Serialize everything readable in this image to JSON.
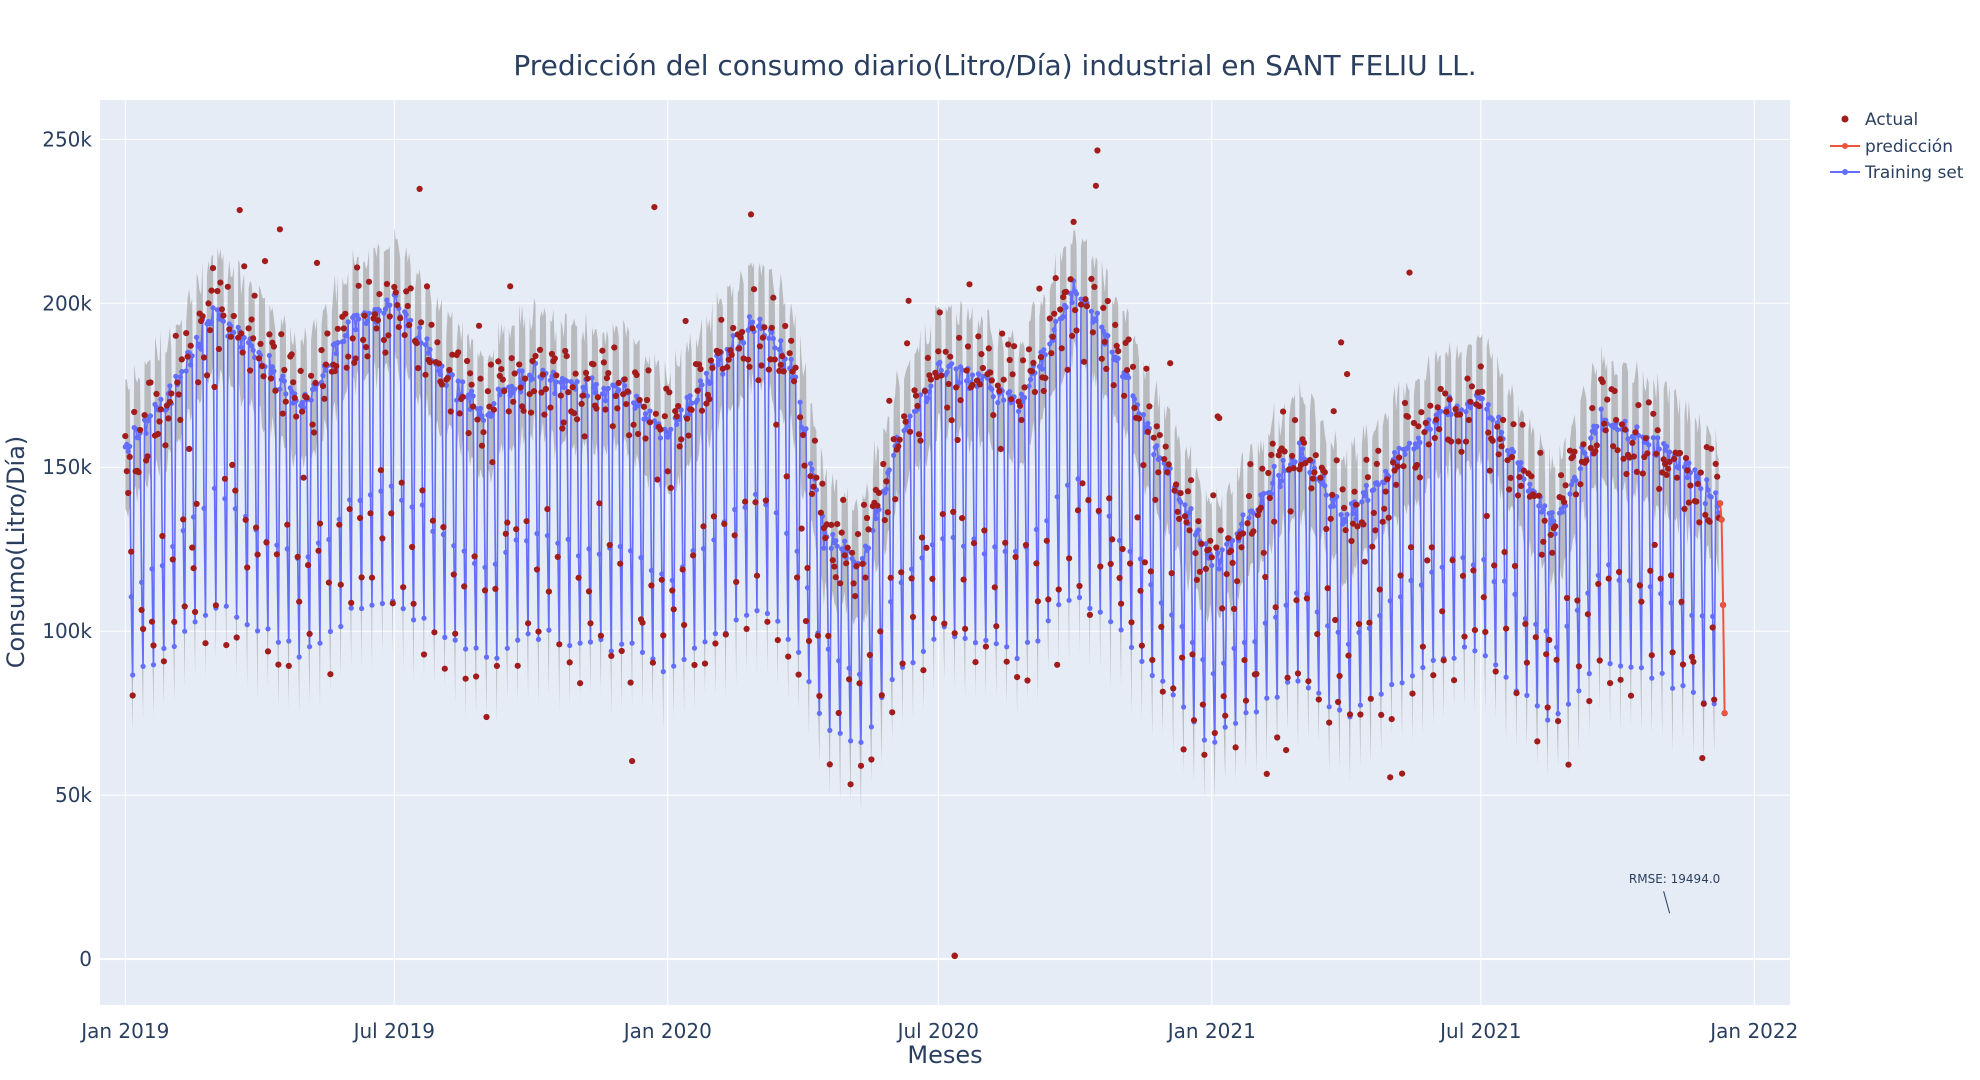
{
  "chart_data": {
    "type": "line",
    "title": "Predicción del consumo diario(Litro/Día) industrial en SANT FELIU LL.",
    "xlabel": "Meses",
    "ylabel": "Consumo(Litro/Día)",
    "x_range": [
      "2018-12-15",
      "2022-01-25"
    ],
    "ylim": [
      -14000,
      262000
    ],
    "x_ticks": [
      {
        "date": "2019-01-01",
        "label": "Jan 2019"
      },
      {
        "date": "2019-07-01",
        "label": "Jul 2019"
      },
      {
        "date": "2020-01-01",
        "label": "Jan 2020"
      },
      {
        "date": "2020-07-01",
        "label": "Jul 2020"
      },
      {
        "date": "2021-01-01",
        "label": "Jan 2021"
      },
      {
        "date": "2021-07-01",
        "label": "Jul 2021"
      },
      {
        "date": "2022-01-01",
        "label": "Jan 2022"
      }
    ],
    "y_ticks": [
      {
        "value": 0,
        "label": "0"
      },
      {
        "value": 50000,
        "label": "50k"
      },
      {
        "value": 100000,
        "label": "100k"
      },
      {
        "value": 150000,
        "label": "150k"
      },
      {
        "value": 200000,
        "label": "200k"
      },
      {
        "value": 250000,
        "label": "250k"
      }
    ],
    "grid": true,
    "legend_position": "top-right",
    "series": [
      {
        "name": "Actual",
        "mode": "markers",
        "color": "#a31c1c"
      },
      {
        "name": "predicción",
        "mode": "lines+markers",
        "color": "#ef553b",
        "points": [
          {
            "date": "2021-12-09",
            "value": 139000
          },
          {
            "date": "2021-12-10",
            "value": 134000
          },
          {
            "date": "2021-12-11",
            "value": 108000
          },
          {
            "date": "2021-12-12",
            "value": 75000
          }
        ]
      },
      {
        "name": "Training set",
        "mode": "lines+markers",
        "color": "#636efa",
        "band_color": "#a9a9a9"
      }
    ],
    "training_profile": {
      "start": "2019-01-01",
      "end": "2021-12-08",
      "weekend_drop_sat": 0.28,
      "weekend_drop_sun": 0.45,
      "band_halfwidth": 15000,
      "weekday_level_knots": [
        {
          "date": "2019-01-01",
          "value": 155000
        },
        {
          "date": "2019-02-01",
          "value": 172000
        },
        {
          "date": "2019-03-01",
          "value": 198000
        },
        {
          "date": "2019-04-10",
          "value": 180000
        },
        {
          "date": "2019-05-01",
          "value": 168000
        },
        {
          "date": "2019-06-01",
          "value": 192000
        },
        {
          "date": "2019-07-01",
          "value": 200000
        },
        {
          "date": "2019-08-01",
          "value": 180000
        },
        {
          "date": "2019-09-01",
          "value": 166000
        },
        {
          "date": "2019-10-01",
          "value": 180000
        },
        {
          "date": "2019-11-01",
          "value": 174000
        },
        {
          "date": "2019-12-01",
          "value": 174000
        },
        {
          "date": "2020-01-01",
          "value": 160000
        },
        {
          "date": "2020-02-01",
          "value": 180000
        },
        {
          "date": "2020-03-01",
          "value": 195000
        },
        {
          "date": "2020-03-25",
          "value": 180000
        },
        {
          "date": "2020-04-15",
          "value": 130000
        },
        {
          "date": "2020-05-10",
          "value": 120000
        },
        {
          "date": "2020-06-01",
          "value": 155000
        },
        {
          "date": "2020-07-01",
          "value": 180000
        },
        {
          "date": "2020-08-01",
          "value": 175000
        },
        {
          "date": "2020-08-25",
          "value": 170000
        },
        {
          "date": "2020-10-01",
          "value": 205000
        },
        {
          "date": "2020-11-01",
          "value": 180000
        },
        {
          "date": "2020-12-01",
          "value": 150000
        },
        {
          "date": "2021-01-01",
          "value": 120000
        },
        {
          "date": "2021-02-01",
          "value": 140000
        },
        {
          "date": "2021-03-01",
          "value": 155000
        },
        {
          "date": "2021-04-01",
          "value": 135000
        },
        {
          "date": "2021-05-01",
          "value": 150000
        },
        {
          "date": "2021-06-01",
          "value": 165000
        },
        {
          "date": "2021-07-01",
          "value": 172000
        },
        {
          "date": "2021-08-01",
          "value": 145000
        },
        {
          "date": "2021-08-20",
          "value": 132000
        },
        {
          "date": "2021-09-20",
          "value": 165000
        },
        {
          "date": "2021-11-01",
          "value": 155000
        },
        {
          "date": "2021-12-08",
          "value": 140000
        }
      ]
    },
    "outliers": [
      {
        "date": "2020-07-12",
        "value": 1000
      }
    ],
    "annotations": [
      {
        "text": "RMSE: 19494.0",
        "date": "2021-11-05",
        "value": 14000
      }
    ]
  }
}
